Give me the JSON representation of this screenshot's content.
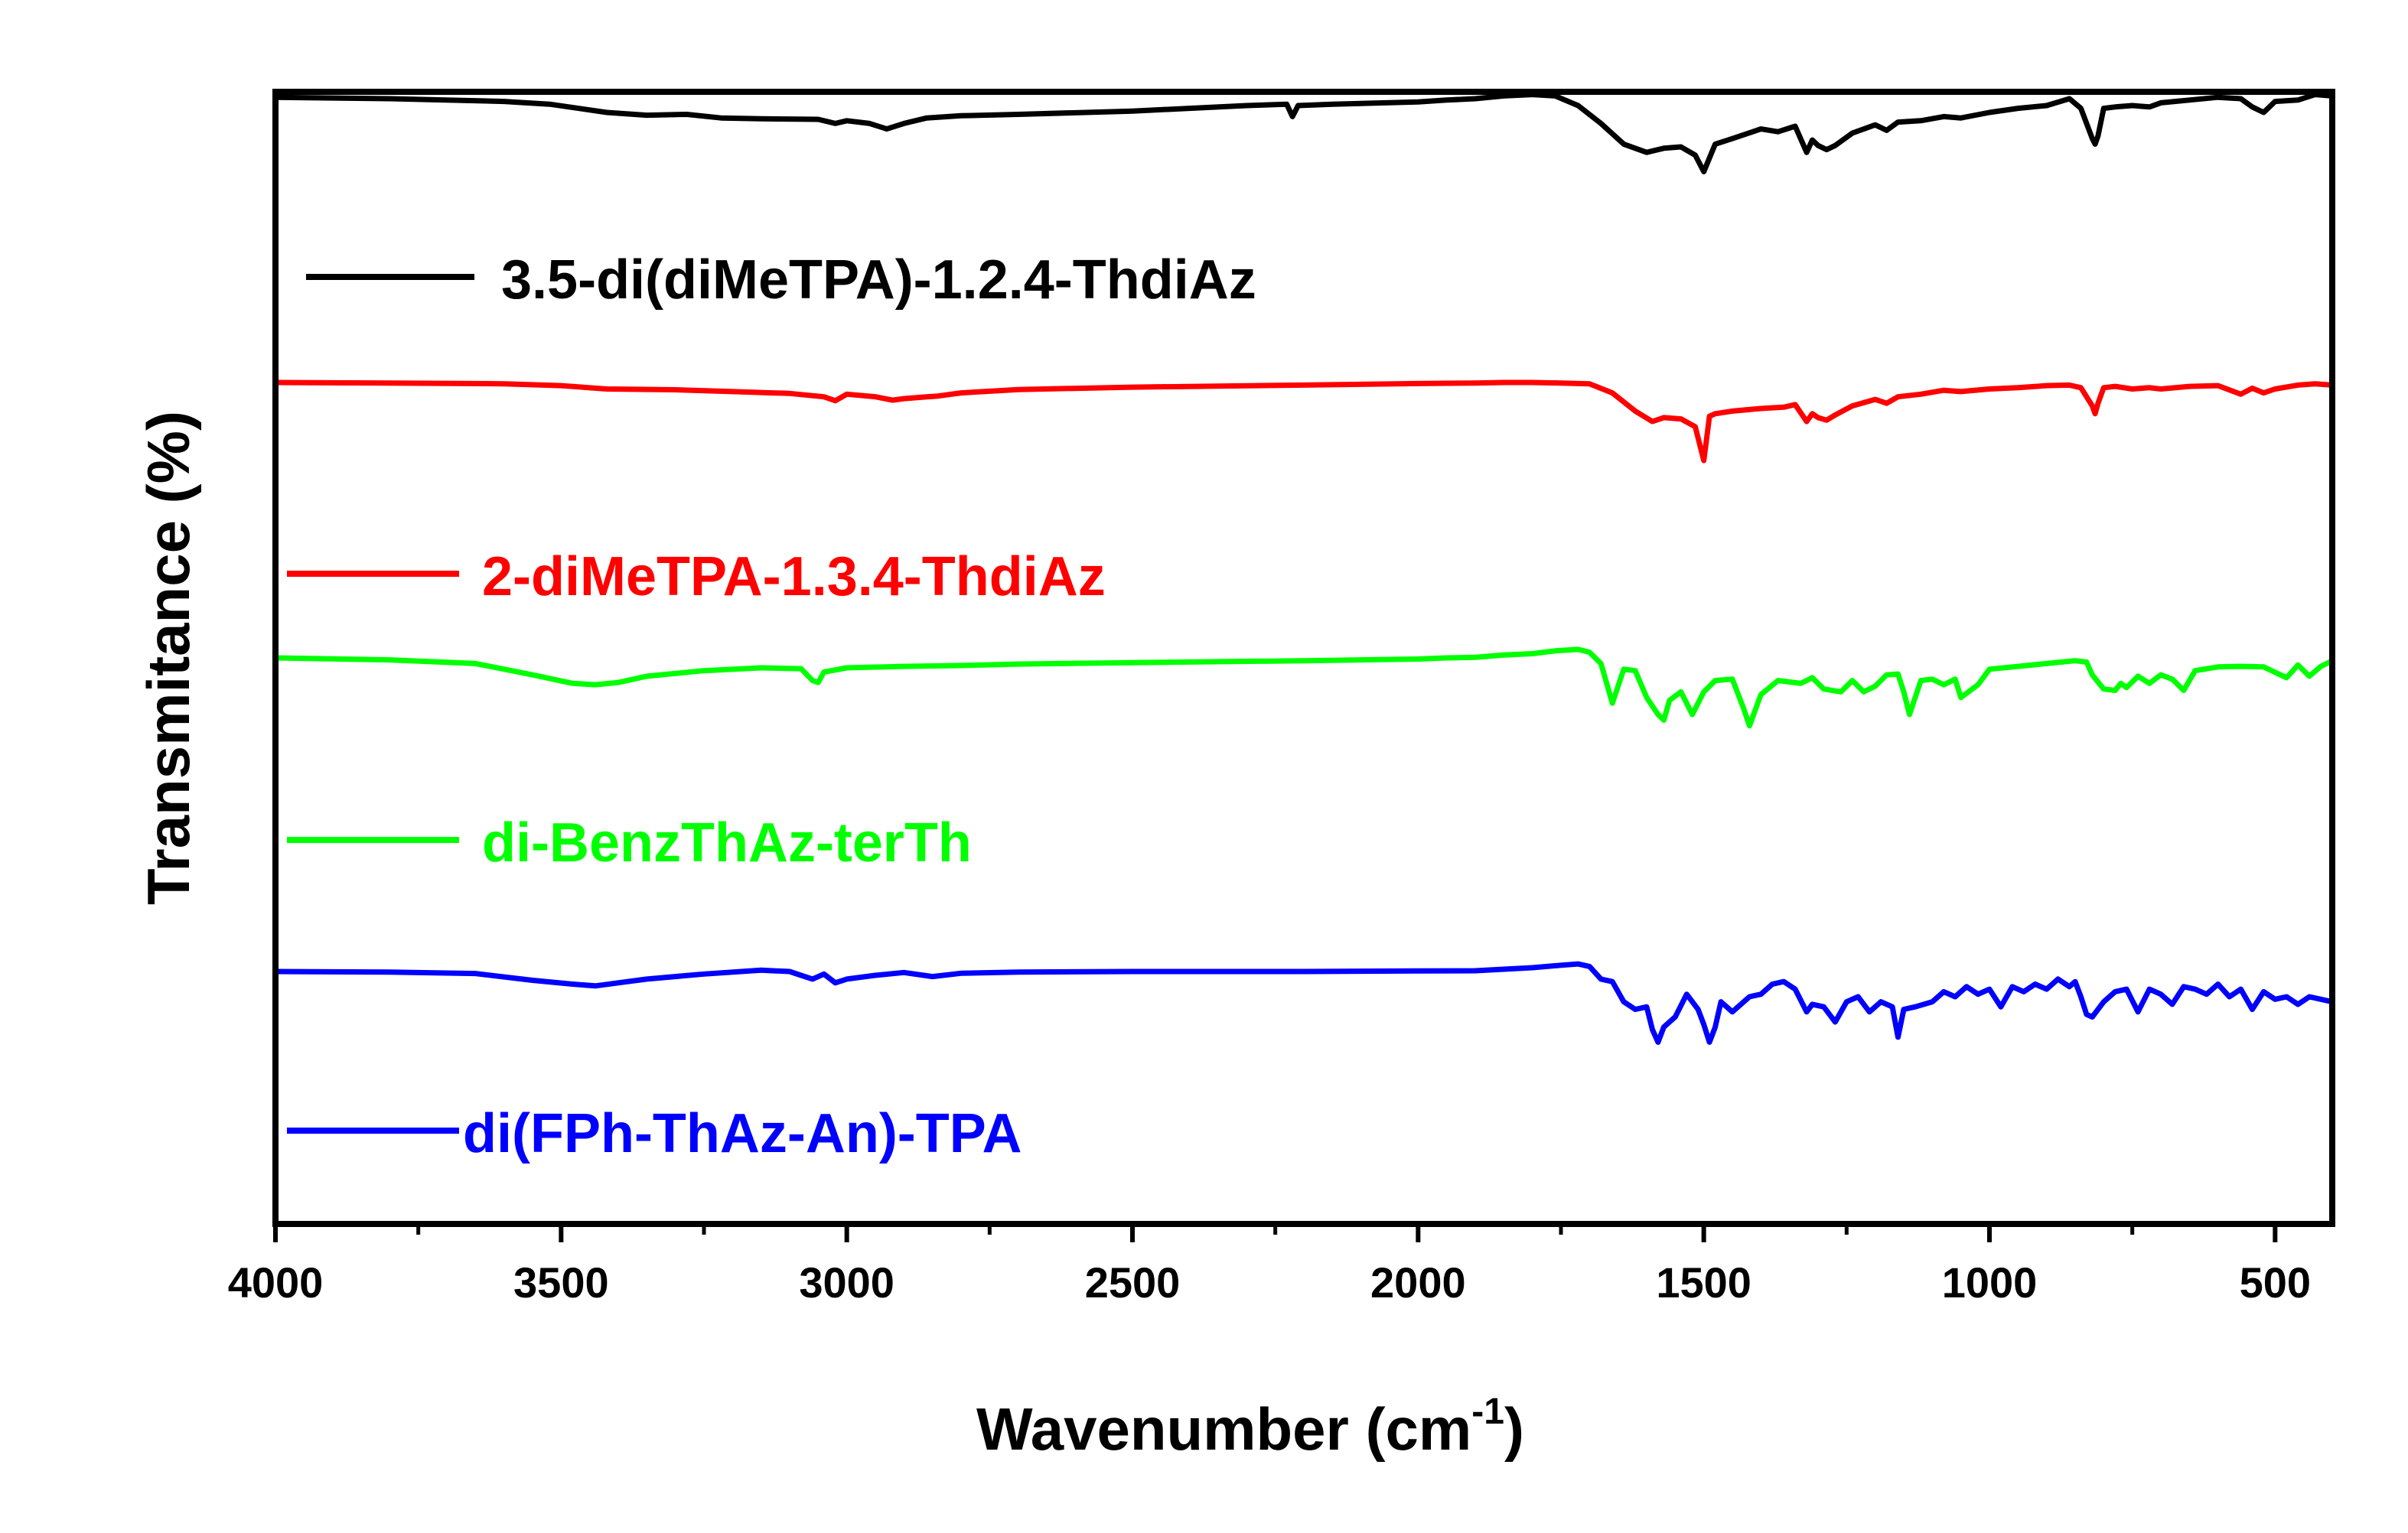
{
  "chart_data": {
    "type": "line",
    "title": "",
    "xlabel": "Wavenumber (cm",
    "xlabel_sup": "-1",
    "xlabel_suffix": ")",
    "ylabel": "Transmitance (%)",
    "xlim": [
      4000,
      400
    ],
    "x_inverted": true,
    "ylim": [
      0,
      100
    ],
    "y_ticks_shown": false,
    "grid": false,
    "x_major_ticks": [
      4000,
      3500,
      3000,
      2500,
      2000,
      1500,
      1000,
      500
    ],
    "x_minor_ticks": [
      3750,
      3250,
      2750,
      2250,
      1750,
      1250,
      750
    ],
    "x_tick_labels": [
      "4000",
      "3500",
      "3000",
      "2500",
      "2000",
      "1500",
      "1000",
      "500"
    ],
    "legend_position": "inline-left",
    "series": [
      {
        "name": "3.5-di(diMeTPA)-1.2.4-ThdiAz",
        "color": "#000000",
        "x": [
          4000,
          3800,
          3600,
          3520,
          3420,
          3350,
          3280,
          3220,
          3150,
          3050,
          3020,
          3000,
          2960,
          2930,
          2900,
          2860,
          2800,
          2700,
          2500,
          2300,
          2230,
          2220,
          2210,
          2150,
          2000,
          1950,
          1900,
          1850,
          1800,
          1760,
          1720,
          1680,
          1640,
          1600,
          1570,
          1540,
          1515,
          1500,
          1480,
          1450,
          1400,
          1370,
          1340,
          1320,
          1310,
          1300,
          1285,
          1270,
          1240,
          1200,
          1180,
          1160,
          1120,
          1080,
          1050,
          1000,
          950,
          900,
          860,
          840,
          820,
          815,
          810,
          800,
          780,
          750,
          720,
          700,
          650,
          600,
          560,
          540,
          520,
          500,
          460,
          430,
          400
        ],
        "y": [
          98,
          97.5,
          96.5,
          95.5,
          92.5,
          91.5,
          91.8,
          90.5,
          90.2,
          90,
          88.5,
          89.5,
          88.5,
          86.5,
          88.5,
          90.5,
          91.3,
          91.8,
          93,
          95,
          95.5,
          91,
          95,
          95.5,
          96.3,
          97,
          97.5,
          98.5,
          99,
          98.5,
          95,
          88.5,
          81,
          78,
          79.5,
          80,
          77,
          71,
          81,
          83,
          86.5,
          85.5,
          87.5,
          78,
          82.5,
          80.5,
          79,
          80.5,
          85,
          88,
          86,
          89,
          89.5,
          91,
          90.5,
          92.5,
          94,
          95,
          97.5,
          94,
          83,
          81,
          84,
          94,
          94.5,
          95,
          94.5,
          96,
          97,
          98,
          97.5,
          94.5,
          92.5,
          96.5,
          97,
          99,
          98.5
        ]
      },
      {
        "name": "2-diMeTPA-1.3.4-ThdiAz",
        "color": "#ff0000",
        "x": [
          4000,
          3800,
          3600,
          3500,
          3420,
          3300,
          3200,
          3100,
          3040,
          3020,
          3000,
          2950,
          2920,
          2900,
          2860,
          2840,
          2800,
          2700,
          2500,
          2200,
          2000,
          1900,
          1850,
          1800,
          1750,
          1700,
          1660,
          1620,
          1590,
          1570,
          1540,
          1515,
          1500,
          1490,
          1480,
          1450,
          1400,
          1360,
          1340,
          1320,
          1310,
          1300,
          1285,
          1270,
          1240,
          1200,
          1180,
          1160,
          1120,
          1080,
          1050,
          1000,
          950,
          900,
          860,
          840,
          820,
          815,
          810,
          800,
          780,
          750,
          720,
          700,
          650,
          600,
          560,
          540,
          520,
          500,
          460,
          430,
          400
        ],
        "y": [
          100,
          99.8,
          99.5,
          98.8,
          97.5,
          97.2,
          96.5,
          95.8,
          94.5,
          93,
          95.5,
          94.5,
          93.2,
          93.8,
          94.5,
          94.8,
          96,
          97.3,
          98.2,
          99,
          99.6,
          99.8,
          100,
          100,
          99.8,
          99.5,
          96,
          89,
          85,
          86.5,
          86,
          83,
          70,
          87,
          88,
          89,
          90,
          90.5,
          91.5,
          85,
          88,
          86.5,
          85.5,
          87.5,
          91,
          93.5,
          92,
          94.5,
          95.5,
          97,
          96.5,
          97.5,
          98,
          98.8,
          99,
          98,
          91,
          88,
          92,
          98,
          98.5,
          97.5,
          98,
          97.5,
          98.5,
          98.8,
          95.5,
          97.8,
          96,
          97.5,
          99,
          99.5,
          99
        ]
      },
      {
        "name": "di-BenzThAz-terTh",
        "color": "#00ff00",
        "x": [
          4000,
          3800,
          3650,
          3550,
          3480,
          3440,
          3400,
          3350,
          3250,
          3150,
          3080,
          3060,
          3050,
          3040,
          3000,
          2900,
          2800,
          2700,
          2500,
          2200,
          2000,
          1950,
          1900,
          1850,
          1800,
          1760,
          1720,
          1700,
          1680,
          1660,
          1640,
          1620,
          1600,
          1580,
          1570,
          1560,
          1540,
          1520,
          1500,
          1480,
          1450,
          1430,
          1420,
          1400,
          1370,
          1330,
          1310,
          1290,
          1260,
          1240,
          1220,
          1200,
          1180,
          1160,
          1150,
          1140,
          1120,
          1100,
          1080,
          1060,
          1050,
          1020,
          1000,
          950,
          900,
          850,
          830,
          820,
          800,
          780,
          770,
          760,
          740,
          720,
          700,
          680,
          660,
          640,
          600,
          560,
          520,
          480,
          460,
          440,
          420,
          400
        ],
        "y": [
          100,
          99.3,
          98,
          94,
          91,
          90.5,
          91.3,
          93.5,
          95.5,
          96.5,
          96.2,
          92,
          91.3,
          95,
          96.5,
          97,
          97.3,
          97.8,
          98.3,
          99,
          99.6,
          100,
          100.2,
          101,
          101.5,
          102.5,
          103,
          102,
          98,
          84,
          96,
          95.5,
          86,
          80,
          78,
          85,
          88,
          80,
          88,
          92,
          92.5,
          82,
          76,
          87,
          92,
          91,
          93,
          89,
          88,
          92,
          88,
          90,
          94,
          94.3,
          88,
          80,
          92,
          92.5,
          90.5,
          92.5,
          86,
          90.5,
          96,
          97,
          98,
          99,
          98.5,
          94,
          89,
          88.5,
          91,
          89.5,
          93.5,
          91,
          94,
          92.5,
          88.5,
          95.5,
          96.8,
          97,
          96.8,
          93,
          97.5,
          93.5,
          97,
          99
        ]
      },
      {
        "name": "di(FPh-ThAz-An)-TPA",
        "color": "#0000ff",
        "x": [
          4000,
          3800,
          3650,
          3550,
          3480,
          3440,
          3400,
          3350,
          3250,
          3150,
          3100,
          3080,
          3060,
          3040,
          3020,
          3000,
          2950,
          2900,
          2850,
          2800,
          2700,
          2500,
          2200,
          2000,
          1900,
          1800,
          1750,
          1720,
          1700,
          1680,
          1660,
          1640,
          1620,
          1600,
          1590,
          1580,
          1570,
          1550,
          1530,
          1510,
          1500,
          1490,
          1480,
          1470,
          1450,
          1420,
          1400,
          1380,
          1360,
          1340,
          1320,
          1310,
          1290,
          1270,
          1250,
          1230,
          1210,
          1190,
          1170,
          1160,
          1150,
          1130,
          1100,
          1080,
          1060,
          1040,
          1020,
          1000,
          980,
          960,
          940,
          920,
          900,
          880,
          860,
          850,
          840,
          830,
          820,
          800,
          780,
          760,
          740,
          720,
          700,
          680,
          660,
          640,
          620,
          600,
          580,
          560,
          540,
          520,
          500,
          480,
          460,
          440,
          420,
          400
        ],
        "y": [
          100,
          99.8,
          99.2,
          96.5,
          95,
          94.3,
          95.5,
          97,
          99,
          100.5,
          100,
          98.5,
          97,
          99,
          95.5,
          97,
          98.5,
          99.6,
          98,
          99.3,
          99.8,
          100,
          100,
          100.2,
          100.3,
          101.5,
          102.5,
          103,
          102,
          97,
          96,
          88,
          85,
          86,
          77,
          72,
          78,
          82,
          91,
          85,
          79,
          72,
          78,
          88,
          84,
          90,
          91,
          95,
          96,
          93,
          84,
          87,
          86,
          80,
          88,
          90,
          84,
          88,
          86,
          74,
          85,
          86,
          88,
          92,
          90,
          94,
          91,
          93,
          86,
          94,
          92,
          95,
          93,
          97,
          94,
          96,
          90,
          83,
          82,
          88,
          92,
          93,
          84,
          93,
          91,
          87,
          94,
          93,
          91,
          95,
          90,
          93,
          85,
          92,
          89,
          90,
          87,
          90,
          89,
          88
        ]
      }
    ]
  }
}
